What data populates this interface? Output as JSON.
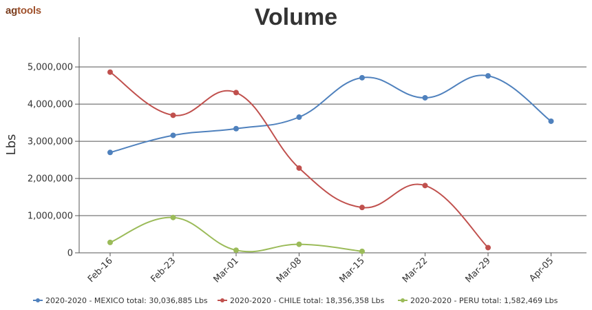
{
  "header": {
    "logo_prefix": "ag",
    "logo_suffix": "tools"
  },
  "chart_data": {
    "type": "line",
    "title": "Volume",
    "xlabel": "",
    "ylabel": "Lbs",
    "categories": [
      "Feb-16",
      "Feb-23",
      "Mar-01",
      "Mar-08",
      "Mar-15",
      "Mar-22",
      "Mar-29",
      "Apr-05"
    ],
    "yticks": [
      "0",
      "1,000,000",
      "2,000,000",
      "3,000,000",
      "4,000,000",
      "5,000,000"
    ],
    "ylim": [
      0,
      5800000
    ],
    "grid": true,
    "legend": "bottom",
    "series": [
      {
        "name": "2020-2020 - MEXICO total: 30,036,885 Lbs",
        "color": "#4f81bd",
        "values": [
          2700000,
          3160000,
          3340000,
          3650000,
          4710000,
          4170000,
          4760000,
          3540000
        ]
      },
      {
        "name": "2020-2020 - CHILE total: 18,356,358 Lbs",
        "color": "#c0504d",
        "values": [
          4860000,
          3700000,
          4310000,
          2280000,
          1220000,
          1810000,
          140000,
          null
        ]
      },
      {
        "name": "2020-2020 - PERU total: 1,582,469 Lbs",
        "color": "#9bbb59",
        "values": [
          280000,
          950000,
          70000,
          230000,
          40000,
          null,
          null,
          null
        ]
      }
    ]
  }
}
